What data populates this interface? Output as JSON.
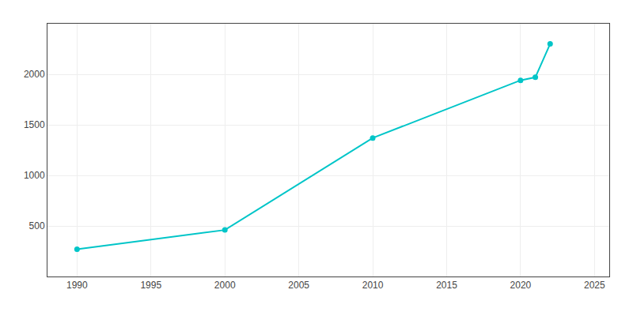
{
  "chart_data": {
    "type": "line",
    "x": [
      1990,
      2000,
      2010,
      2020,
      2021,
      2022
    ],
    "values": [
      270,
      460,
      1370,
      1940,
      1970,
      2300
    ],
    "color": "#00C5C8",
    "marker": "circle",
    "xlim": [
      1988,
      2026
    ],
    "ylim": [
      0,
      2500
    ],
    "xticks": [
      1990,
      1995,
      2000,
      2005,
      2010,
      2015,
      2020,
      2025
    ],
    "yticks": [
      500,
      1000,
      1500,
      2000
    ],
    "grid": true
  }
}
